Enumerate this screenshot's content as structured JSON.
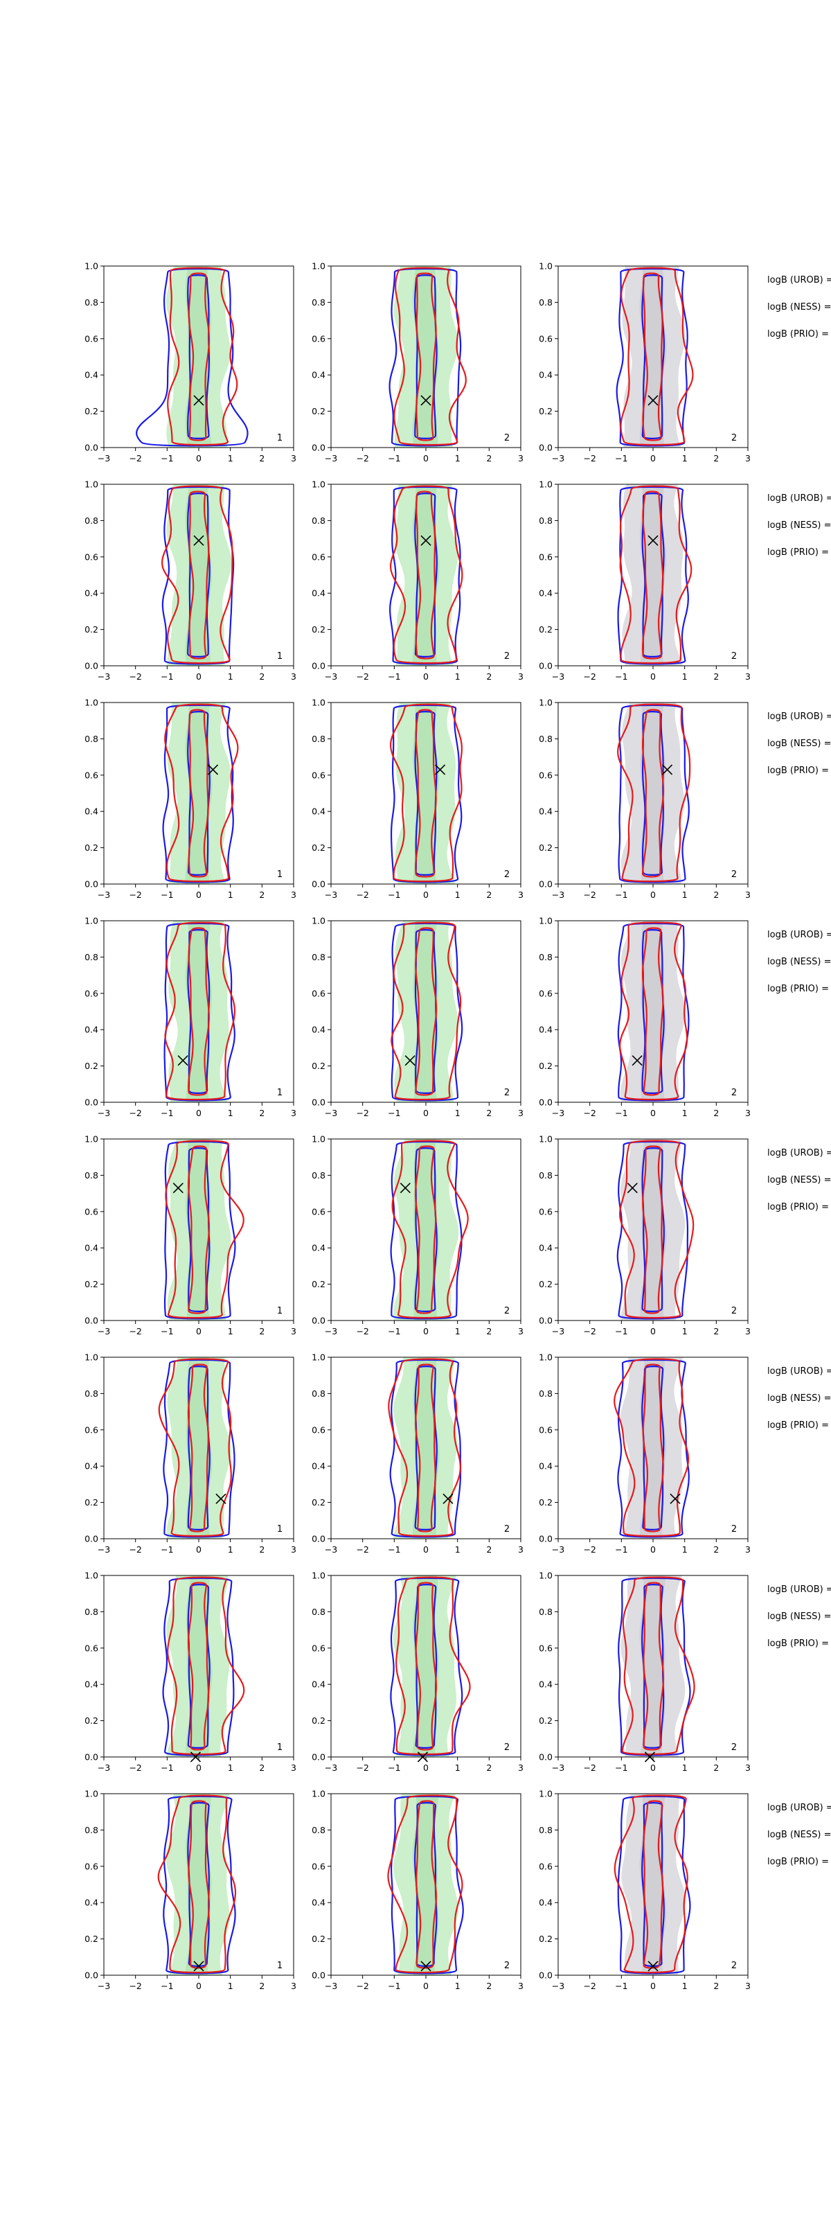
{
  "chart_data": {
    "type": "contour-grid",
    "rows": 8,
    "columns": 3,
    "xlim": [
      -3,
      3
    ],
    "ylim": [
      0.0,
      1.0
    ],
    "xticks": [
      "−3",
      "−2",
      "−1",
      "0",
      "1",
      "2",
      "3"
    ],
    "yticks": [
      "0.0",
      "0.2",
      "0.4",
      "0.6",
      "0.8",
      "1.0"
    ],
    "column_labels": [
      "1",
      "2",
      "2"
    ],
    "side_labels": [
      "logB (UROB) =",
      "logB (NESS) =",
      "logB (PRIO) ="
    ],
    "colors": {
      "blue_contour": "#1a1ae6",
      "red_contour": "#e61a1a",
      "green_fill": "#b9ebb9",
      "gray_fill": "#d3d3d8",
      "marker": "#000000"
    },
    "markers": [
      {
        "x": 0.0,
        "y": 0.26
      },
      {
        "x": 0.0,
        "y": 0.69
      },
      {
        "x": 0.45,
        "y": 0.63
      },
      {
        "x": -0.5,
        "y": 0.23
      },
      {
        "x": -0.65,
        "y": 0.73
      },
      {
        "x": 0.7,
        "y": 0.22
      },
      {
        "x": -0.1,
        "y": 0.0
      },
      {
        "x": 0.0,
        "y": 0.05
      }
    ]
  }
}
